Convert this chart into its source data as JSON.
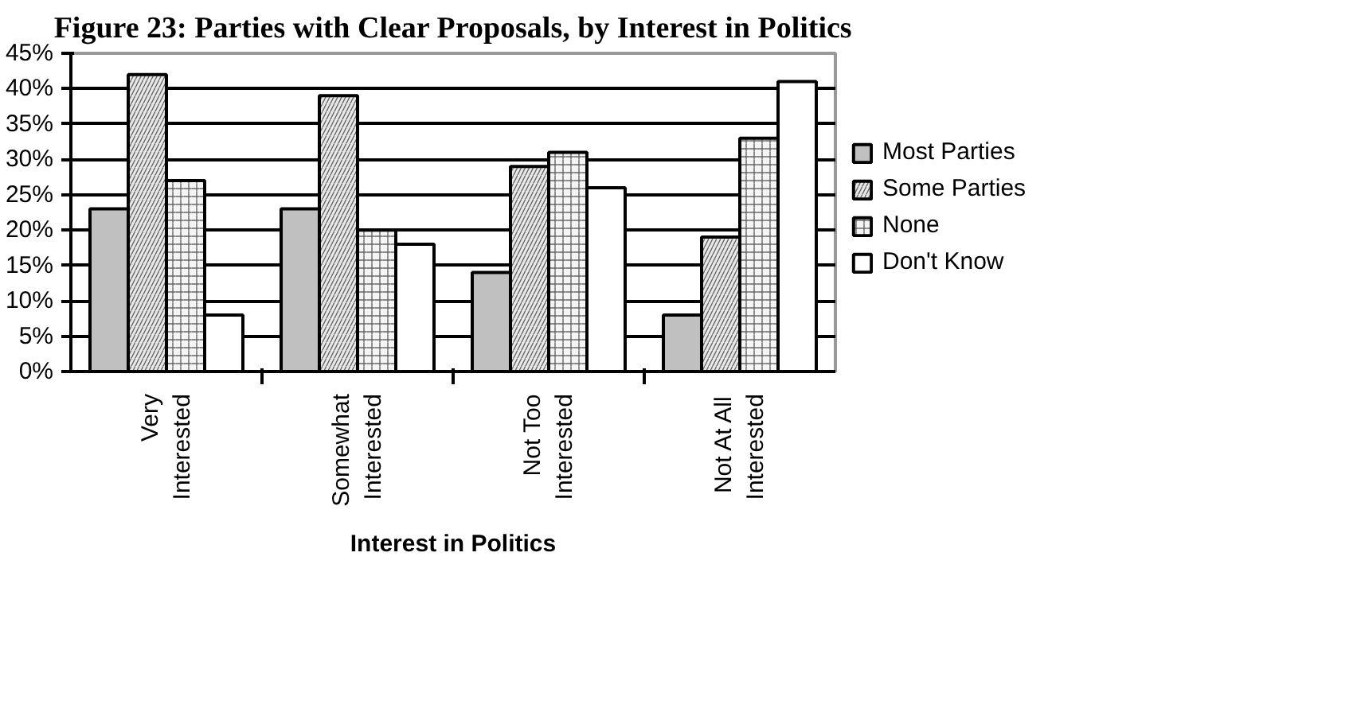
{
  "chart_data": {
    "type": "bar",
    "title": "Figure 23: Parties with Clear Proposals, by Interest in Politics",
    "xlabel": "Interest in Politics",
    "categories": [
      "Very\nInterested",
      "Somewhat\nInterested",
      "Not Too\nInterested",
      "Not At All\nInterested"
    ],
    "series": [
      {
        "name": "Most Parties",
        "color": "#c0c0c0",
        "values": [
          23,
          23,
          14,
          8
        ]
      },
      {
        "name": "Some Parties",
        "color": "#e8e8e8",
        "values": [
          42,
          39,
          29,
          19
        ]
      },
      {
        "name": "None",
        "color": "#f4f4f4",
        "values": [
          27,
          20,
          31,
          33
        ]
      },
      {
        "name": "Don't Know",
        "color": "#ffffff",
        "values": [
          8,
          18,
          26,
          41
        ]
      }
    ],
    "ylim": [
      0,
      45
    ],
    "yticks": [
      {
        "value": 0,
        "label": "0%"
      },
      {
        "value": 5,
        "label": "5%"
      },
      {
        "value": 10,
        "label": "10%"
      },
      {
        "value": 15,
        "label": "15%"
      },
      {
        "value": 20,
        "label": "20%"
      },
      {
        "value": 25,
        "label": "25%"
      },
      {
        "value": 30,
        "label": "30%"
      },
      {
        "value": 35,
        "label": "35%"
      },
      {
        "value": 40,
        "label": "40%"
      },
      {
        "value": 45,
        "label": "45%"
      }
    ],
    "grid": "y",
    "legend": "right"
  }
}
